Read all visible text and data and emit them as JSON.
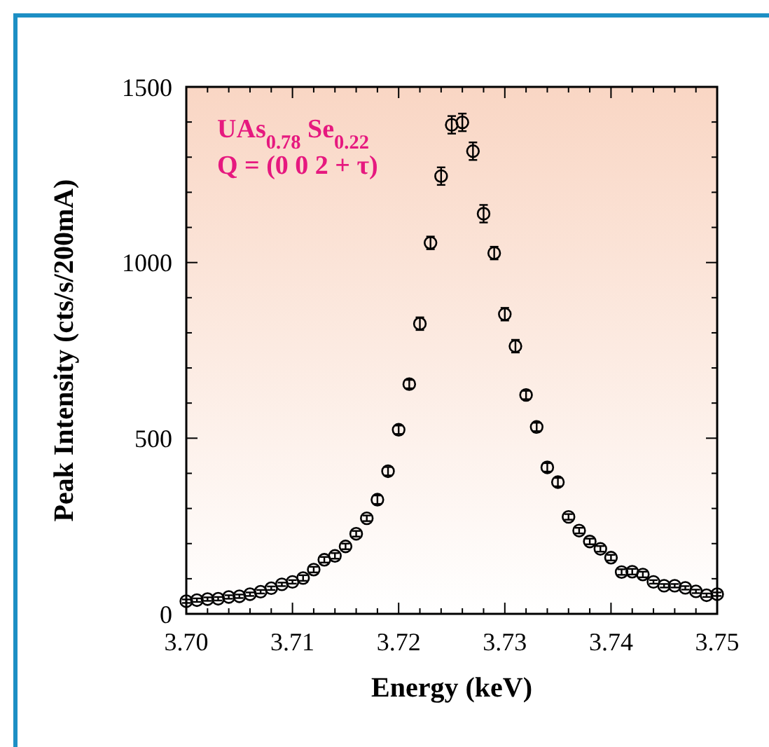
{
  "chart_data": {
    "type": "scatter",
    "xlabel": "Energy (keV)",
    "ylabel": "Peak Intensity (cts/s/200mA)",
    "annotations": [
      "UAs$_{0.78}$ Se$_{0.22}$",
      "Q = (0 0 2 + τ)"
    ],
    "x": [
      3.7,
      3.701,
      3.702,
      3.703,
      3.704,
      3.705,
      3.706,
      3.707,
      3.708,
      3.709,
      3.71,
      3.711,
      3.712,
      3.713,
      3.714,
      3.715,
      3.716,
      3.717,
      3.718,
      3.719,
      3.72,
      3.721,
      3.722,
      3.723,
      3.724,
      3.725,
      3.726,
      3.727,
      3.728,
      3.729,
      3.73,
      3.731,
      3.732,
      3.733,
      3.734,
      3.735,
      3.736,
      3.737,
      3.738,
      3.739,
      3.74,
      3.741,
      3.742,
      3.743,
      3.744,
      3.745,
      3.746,
      3.747,
      3.748,
      3.749,
      3.75
    ],
    "series": [
      {
        "color": "#000000",
        "values": [
          36,
          39,
          42,
          43,
          48,
          50,
          56,
          63,
          73,
          84,
          91,
          102,
          126,
          154,
          165,
          192,
          228,
          272,
          325,
          406,
          524,
          654,
          826,
          1056,
          1246,
          1392,
          1399,
          1317,
          1139,
          1027,
          853,
          762,
          623,
          532,
          417,
          375,
          276,
          237,
          206,
          185,
          160,
          119,
          120,
          112,
          91,
          80,
          80,
          74,
          64,
          53,
          56
        ],
        "errors": [
          5,
          5,
          5,
          5,
          5,
          5,
          5,
          5,
          5,
          5,
          5,
          8,
          8,
          8,
          8,
          8,
          8,
          8,
          12,
          12,
          12,
          12,
          18,
          18,
          25,
          25,
          25,
          25,
          25,
          18,
          18,
          18,
          12,
          12,
          12,
          12,
          8,
          8,
          8,
          8,
          8,
          8,
          8,
          8,
          5,
          5,
          5,
          5,
          5,
          5,
          5
        ]
      }
    ],
    "marker": "circle",
    "grid": false,
    "xlim": [
      3.7,
      3.75
    ],
    "xticks": [
      {
        "value": 3.7,
        "label": "3.70"
      },
      {
        "value": 3.702,
        "label": null
      },
      {
        "value": 3.704,
        "label": null
      },
      {
        "value": 3.706,
        "label": null
      },
      {
        "value": 3.708,
        "label": null
      },
      3.71,
      {
        "value": 3.712,
        "label": null
      },
      {
        "value": 3.714,
        "label": null
      },
      {
        "value": 3.716,
        "label": null
      },
      {
        "value": 3.718,
        "label": null
      },
      3.72,
      {
        "value": 3.722,
        "label": null
      },
      {
        "value": 3.724,
        "label": null
      },
      {
        "value": 3.726,
        "label": null
      },
      {
        "value": 3.728,
        "label": null
      },
      3.73,
      {
        "value": 3.732,
        "label": null
      },
      {
        "value": 3.734,
        "label": null
      },
      {
        "value": 3.736,
        "label": null
      },
      {
        "value": 3.738,
        "label": null
      },
      3.74,
      {
        "value": 3.742,
        "label": null
      },
      {
        "value": 3.744,
        "label": null
      },
      {
        "value": 3.746,
        "label": null
      },
      {
        "value": 3.748,
        "label": null
      },
      3.75
    ],
    "ylim": [
      0,
      1500
    ],
    "yticks": [
      0,
      {
        "value": 100,
        "label": null
      },
      {
        "value": 200,
        "label": null
      },
      {
        "value": 300,
        "label": null
      },
      {
        "value": 400,
        "label": null
      },
      500,
      {
        "value": 600,
        "label": null
      },
      {
        "value": 700,
        "label": null
      },
      {
        "value": 800,
        "label": null
      },
      {
        "value": 900,
        "label": null
      },
      1000,
      {
        "value": 1100,
        "label": null
      },
      {
        "value": 1200,
        "label": null
      },
      {
        "value": 1300,
        "label": null
      },
      {
        "value": 1400,
        "label": null
      },
      1500
    ]
  }
}
